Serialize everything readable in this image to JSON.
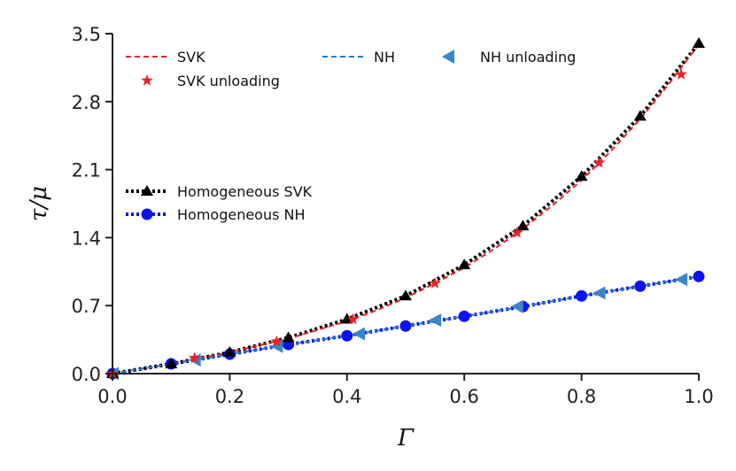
{
  "chart_data": {
    "type": "line",
    "title": "",
    "xlabel": "Γ",
    "ylabel": "τ/μ",
    "xlim": [
      0.0,
      1.0
    ],
    "ylim": [
      0.0,
      3.5
    ],
    "xticks": [
      "0.0",
      "0.2",
      "0.4",
      "0.6",
      "0.8",
      "1.0"
    ],
    "yticks": [
      "0.0",
      "0.7",
      "1.4",
      "2.1",
      "2.8",
      "3.5"
    ],
    "grid": false,
    "legend_placement": "top and middle-left",
    "series": [
      {
        "name": "SVK",
        "style": "dashed",
        "color": "#e8222a",
        "x": [
          0.0,
          0.05,
          0.1,
          0.15,
          0.2,
          0.25,
          0.3,
          0.35,
          0.4,
          0.45,
          0.5,
          0.55,
          0.6,
          0.65,
          0.7,
          0.75,
          0.8,
          0.85,
          0.9,
          0.95,
          1.0
        ],
        "y": [
          0.0,
          0.05,
          0.1,
          0.16,
          0.22,
          0.29,
          0.36,
          0.45,
          0.54,
          0.65,
          0.78,
          0.93,
          1.09,
          1.28,
          1.49,
          1.73,
          1.99,
          2.29,
          2.62,
          2.99,
          3.39
        ]
      },
      {
        "name": "SVK unloading",
        "style": "marker-star",
        "color": "#e8222a",
        "x": [
          0.0,
          0.14,
          0.28,
          0.41,
          0.55,
          0.69,
          0.83,
          0.97
        ],
        "y": [
          0.0,
          0.16,
          0.33,
          0.56,
          0.93,
          1.45,
          2.17,
          3.08
        ]
      },
      {
        "name": "NH",
        "style": "dashed",
        "color": "#2a78c8",
        "x": [
          0.0,
          0.1,
          0.2,
          0.3,
          0.4,
          0.5,
          0.6,
          0.7,
          0.8,
          0.9,
          1.0
        ],
        "y": [
          0.0,
          0.1,
          0.2,
          0.3,
          0.39,
          0.49,
          0.59,
          0.69,
          0.8,
          0.9,
          1.0
        ]
      },
      {
        "name": "NH unloading",
        "style": "marker-triangle-left",
        "color": "#3a86c8",
        "x": [
          0.0,
          0.14,
          0.28,
          0.42,
          0.55,
          0.69,
          0.83,
          0.97
        ],
        "y": [
          0.0,
          0.14,
          0.28,
          0.41,
          0.55,
          0.69,
          0.83,
          0.97
        ]
      },
      {
        "name": "Homogeneous SVK",
        "style": "dotted-triangle-up",
        "color": "#000000",
        "x": [
          0.0,
          0.1,
          0.2,
          0.3,
          0.4,
          0.5,
          0.6,
          0.7,
          0.8,
          0.9,
          1.0
        ],
        "y": [
          0.0,
          0.1,
          0.22,
          0.37,
          0.56,
          0.8,
          1.12,
          1.52,
          2.03,
          2.65,
          3.4
        ]
      },
      {
        "name": "Homogeneous NH",
        "style": "dotted-circle",
        "color": "#0a14f0",
        "x": [
          0.0,
          0.1,
          0.2,
          0.3,
          0.4,
          0.5,
          0.6,
          0.7,
          0.8,
          0.9,
          1.0
        ],
        "y": [
          0.0,
          0.1,
          0.2,
          0.3,
          0.39,
          0.49,
          0.59,
          0.69,
          0.8,
          0.9,
          1.0
        ]
      }
    ]
  },
  "legend": {
    "svk": "SVK",
    "svk_unloading": "SVK unloading",
    "nh": "NH",
    "nh_unloading": "NH unloading",
    "hom_svk": "Homogeneous SVK",
    "hom_nh": "Homogeneous NH"
  }
}
